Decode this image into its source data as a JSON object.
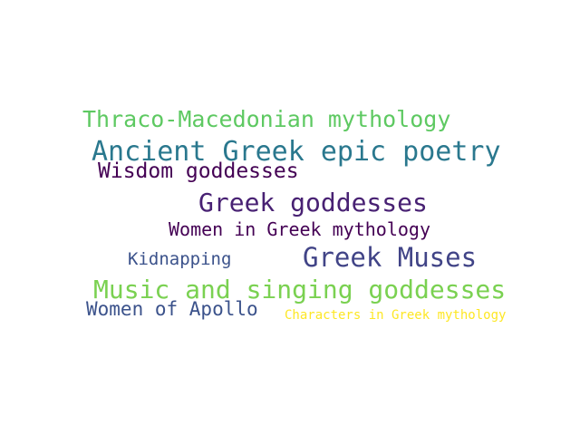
{
  "word_cloud": {
    "words": [
      {
        "text": "Thraco-Macedonian mythology",
        "color": "#5ec962"
      },
      {
        "text": "Ancient Greek epic poetry",
        "color": "#2a788e"
      },
      {
        "text": "Wisdom goddesses",
        "color": "#440154"
      },
      {
        "text": "Greek goddesses",
        "color": "#482173"
      },
      {
        "text": "Women in Greek mythology",
        "color": "#440154"
      },
      {
        "text": "Kidnapping",
        "color": "#3b528b"
      },
      {
        "text": "Greek Muses",
        "color": "#414487"
      },
      {
        "text": "Music and singing goddesses",
        "color": "#7ad151"
      },
      {
        "text": "Women of Apollo",
        "color": "#3b528b"
      },
      {
        "text": "Characters in Greek mythology",
        "color": "#fde725"
      }
    ]
  }
}
